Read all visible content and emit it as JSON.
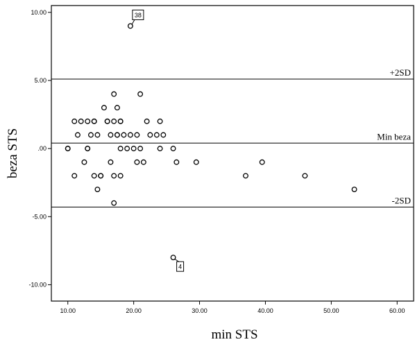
{
  "chart_data": {
    "type": "scatter",
    "xlabel": "min STS",
    "ylabel": "beza STS",
    "xlim": [
      7.5,
      62.5
    ],
    "ylim": [
      -11.2,
      10.5
    ],
    "x_ticks": [
      "10.00",
      "20.00",
      "30.00",
      "40.00",
      "50.00",
      "60.00"
    ],
    "y_ticks": [
      "10.00",
      "5.00",
      ".00",
      "-5.00",
      "-10.00"
    ],
    "reference_lines": [
      {
        "label": "+2SD",
        "y": 5.1
      },
      {
        "label": "Min beza",
        "y": 0.4
      },
      {
        "label": "-2SD",
        "y": -4.3
      }
    ],
    "points": [
      [
        10,
        0
      ],
      [
        10,
        0
      ],
      [
        11,
        2
      ],
      [
        11,
        -2
      ],
      [
        11.5,
        1
      ],
      [
        12,
        2
      ],
      [
        12.5,
        -1
      ],
      [
        13,
        2
      ],
      [
        13,
        0
      ],
      [
        13,
        0
      ],
      [
        13.5,
        1
      ],
      [
        14,
        2
      ],
      [
        14,
        2
      ],
      [
        14,
        -2
      ],
      [
        14.5,
        1
      ],
      [
        14.5,
        -3
      ],
      [
        15,
        -2
      ],
      [
        15,
        -2
      ],
      [
        15.5,
        3
      ],
      [
        16,
        2
      ],
      [
        16,
        2
      ],
      [
        16.5,
        1
      ],
      [
        16.5,
        -1
      ],
      [
        17,
        4
      ],
      [
        17,
        2
      ],
      [
        17,
        -2
      ],
      [
        17,
        -4
      ],
      [
        17.5,
        3
      ],
      [
        17.5,
        1
      ],
      [
        17.5,
        1
      ],
      [
        18,
        2
      ],
      [
        18,
        2
      ],
      [
        18,
        0
      ],
      [
        18,
        -2
      ],
      [
        18.5,
        1
      ],
      [
        19,
        0
      ],
      [
        19.5,
        1
      ],
      [
        20,
        0
      ],
      [
        20.5,
        1
      ],
      [
        20.5,
        -1
      ],
      [
        21,
        4
      ],
      [
        21,
        0
      ],
      [
        21.5,
        -1
      ],
      [
        22,
        2
      ],
      [
        22.5,
        1
      ],
      [
        23.5,
        1
      ],
      [
        24,
        2
      ],
      [
        24,
        0
      ],
      [
        24.5,
        1
      ],
      [
        26,
        0
      ],
      [
        26.5,
        -1
      ],
      [
        29.5,
        -1
      ],
      [
        37,
        -2
      ],
      [
        39.5,
        -1
      ],
      [
        46,
        -2
      ],
      [
        53.5,
        -3
      ],
      [
        19.5,
        9
      ],
      [
        26,
        -8
      ]
    ],
    "callouts": [
      {
        "label": "38",
        "x": 19.5,
        "y": 9
      },
      {
        "label": "4",
        "x": 26,
        "y": -8
      }
    ]
  }
}
